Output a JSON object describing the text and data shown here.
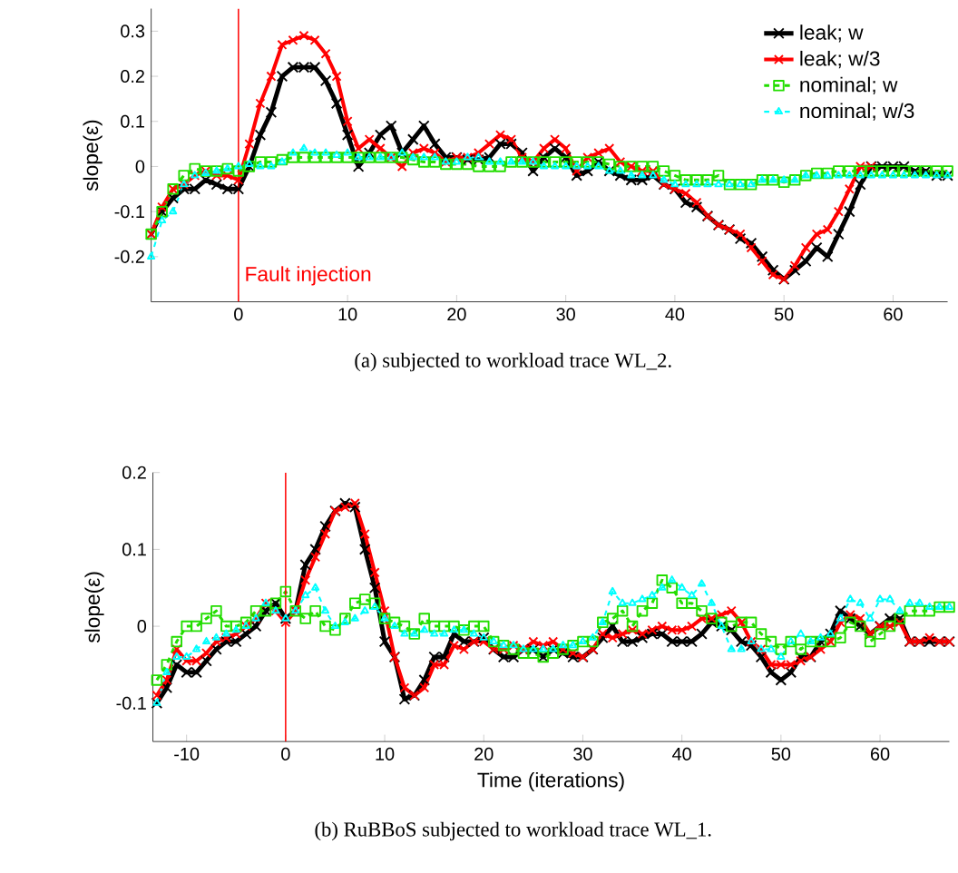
{
  "chart_data": [
    {
      "type": "line",
      "ylabel": "slope(ε)",
      "xlim": [
        -8,
        65
      ],
      "ylim": [
        -0.3,
        0.35
      ],
      "xticks": [
        0,
        10,
        20,
        30,
        40,
        50,
        60
      ],
      "yticks": [
        -0.2,
        -0.1,
        0,
        0.1,
        0.2,
        0.3
      ],
      "legend": "top right",
      "x": [
        -8,
        -7,
        -6,
        -5,
        -4,
        -3,
        -2,
        -1,
        0,
        1,
        2,
        3,
        4,
        5,
        6,
        7,
        8,
        9,
        10,
        11,
        12,
        13,
        14,
        15,
        16,
        17,
        18,
        19,
        20,
        21,
        22,
        23,
        24,
        25,
        26,
        27,
        28,
        29,
        30,
        31,
        32,
        33,
        34,
        35,
        36,
        37,
        38,
        39,
        40,
        41,
        42,
        43,
        44,
        45,
        46,
        47,
        48,
        49,
        50,
        51,
        52,
        53,
        54,
        55,
        56,
        57,
        58,
        59,
        60,
        61,
        62,
        63,
        64,
        65
      ],
      "series": [
        {
          "name": "leak; w",
          "color": "#000000",
          "marker": "cross",
          "line_style": "solid",
          "values": [
            -0.15,
            -0.1,
            -0.07,
            -0.05,
            -0.05,
            -0.03,
            -0.04,
            -0.05,
            -0.05,
            0.0,
            0.07,
            0.12,
            0.2,
            0.22,
            0.22,
            0.22,
            0.19,
            0.14,
            0.07,
            0.0,
            0.03,
            0.07,
            0.09,
            0.03,
            0.06,
            0.09,
            0.05,
            0.02,
            0.02,
            0.015,
            0.015,
            0.02,
            0.05,
            0.05,
            0.03,
            -0.01,
            0.02,
            0.04,
            0.02,
            -0.02,
            -0.01,
            0.01,
            -0.01,
            -0.02,
            -0.03,
            -0.03,
            -0.02,
            -0.04,
            -0.05,
            -0.08,
            -0.09,
            -0.11,
            -0.13,
            -0.14,
            -0.16,
            -0.17,
            -0.2,
            -0.23,
            -0.25,
            -0.23,
            -0.21,
            -0.18,
            -0.2,
            -0.15,
            -0.1,
            -0.04,
            0.0,
            0.0,
            0.0,
            0.0,
            -0.01,
            -0.01,
            -0.02,
            -0.02
          ]
        },
        {
          "name": "leak; w/3",
          "color": "#ff0000",
          "marker": "cross",
          "line_style": "solid",
          "values": [
            -0.15,
            -0.09,
            -0.05,
            -0.04,
            -0.02,
            -0.01,
            -0.02,
            -0.02,
            -0.03,
            0.05,
            0.14,
            0.2,
            0.27,
            0.28,
            0.29,
            0.28,
            0.25,
            0.2,
            0.1,
            0.04,
            0.06,
            0.04,
            0.02,
            0.0,
            0.03,
            0.04,
            0.03,
            0.01,
            0.02,
            0.02,
            0.03,
            0.05,
            0.07,
            0.06,
            0.02,
            0.01,
            0.04,
            0.06,
            0.04,
            -0.01,
            0.02,
            0.03,
            0.04,
            0.01,
            0.0,
            -0.01,
            -0.01,
            -0.04,
            -0.05,
            -0.06,
            -0.08,
            -0.11,
            -0.13,
            -0.14,
            -0.15,
            -0.18,
            -0.21,
            -0.24,
            -0.25,
            -0.22,
            -0.18,
            -0.15,
            -0.14,
            -0.1,
            -0.05,
            0.0,
            0.0,
            null,
            null,
            null,
            null,
            null,
            null,
            null
          ]
        },
        {
          "name": "nominal; w",
          "color": "#22dd00",
          "marker": "square",
          "line_style": "dashed",
          "values": [
            -0.15,
            -0.1,
            -0.05,
            -0.02,
            -0.005,
            -0.01,
            -0.01,
            -0.005,
            -0.01,
            0.0,
            0.01,
            0.01,
            0.015,
            0.02,
            0.02,
            0.02,
            0.02,
            0.02,
            0.02,
            0.02,
            0.02,
            0.02,
            0.02,
            0.02,
            0.015,
            0.01,
            0.01,
            0.005,
            0.005,
            0.005,
            0.0,
            0.0,
            0.0,
            0.01,
            0.01,
            0.01,
            0.01,
            0.01,
            0.01,
            0.01,
            0.01,
            0.01,
            0.005,
            0.0,
            0.0,
            0.0,
            0.0,
            -0.01,
            -0.02,
            -0.03,
            -0.03,
            -0.03,
            -0.02,
            -0.04,
            -0.04,
            -0.04,
            -0.03,
            -0.03,
            -0.035,
            -0.03,
            -0.02,
            -0.015,
            -0.015,
            -0.01,
            -0.01,
            -0.01,
            -0.01,
            -0.01,
            -0.01,
            -0.01,
            -0.01,
            -0.01,
            -0.01,
            -0.01
          ]
        },
        {
          "name": "nominal; w/3",
          "color": "#00ffff",
          "marker": "triangle",
          "line_style": "dashed",
          "values": [
            -0.2,
            -0.12,
            -0.1,
            -0.04,
            -0.02,
            -0.015,
            -0.01,
            -0.005,
            0.0,
            0.005,
            0.0,
            0.0,
            0.01,
            0.03,
            0.04,
            0.03,
            0.03,
            0.025,
            0.03,
            0.02,
            0.02,
            0.02,
            0.02,
            0.03,
            0.02,
            0.02,
            0.02,
            0.01,
            0.01,
            0.02,
            0.02,
            0.01,
            0.01,
            0.01,
            0.01,
            0.01,
            0.0,
            0.0,
            0.0,
            0.0,
            0.0,
            0.0,
            -0.01,
            -0.01,
            -0.02,
            -0.02,
            -0.02,
            -0.03,
            -0.04,
            -0.04,
            -0.04,
            -0.04,
            -0.04,
            -0.04,
            -0.04,
            -0.04,
            -0.03,
            -0.03,
            -0.03,
            -0.03,
            -0.02,
            -0.02,
            -0.02,
            -0.02,
            -0.02,
            -0.02,
            -0.02,
            -0.02,
            -0.02,
            -0.02,
            -0.02,
            -0.02,
            -0.02,
            -0.02
          ]
        }
      ],
      "ref_lines": [
        {
          "axis": "x",
          "value": 0,
          "label": "Fault injection",
          "color": "#ff0000"
        }
      ],
      "annotations": [
        "(a) subjected to workload trace WL_2."
      ]
    },
    {
      "type": "line",
      "xlabel": "Time (iterations)",
      "ylabel": "slope(ε)",
      "xlim": [
        -13.4,
        67
      ],
      "ylim": [
        -0.15,
        0.2
      ],
      "xticks": [
        -10,
        0,
        10,
        20,
        30,
        40,
        50,
        60
      ],
      "yticks": [
        -0.1,
        0,
        0.1,
        0.2
      ],
      "x": [
        -13,
        -12,
        -11,
        -10,
        -9,
        -8,
        -7,
        -6,
        -5,
        -4,
        -3,
        -2,
        -1,
        0,
        1,
        2,
        3,
        4,
        5,
        6,
        7,
        8,
        9,
        10,
        11,
        12,
        13,
        14,
        15,
        16,
        17,
        18,
        19,
        20,
        21,
        22,
        23,
        24,
        25,
        26,
        27,
        28,
        29,
        30,
        31,
        32,
        33,
        34,
        35,
        36,
        37,
        38,
        39,
        40,
        41,
        42,
        43,
        44,
        45,
        46,
        47,
        48,
        49,
        50,
        51,
        52,
        53,
        54,
        55,
        56,
        57,
        58,
        59,
        60,
        61,
        62,
        63,
        64,
        65,
        66,
        67
      ],
      "series": [
        {
          "color": "#000000",
          "marker": "cross",
          "line_style": "solid",
          "values": [
            -0.1,
            -0.08,
            -0.05,
            -0.06,
            -0.06,
            -0.045,
            -0.03,
            -0.02,
            -0.02,
            -0.01,
            0.0,
            0.02,
            0.03,
            0.01,
            0.02,
            0.08,
            0.1,
            0.13,
            0.15,
            0.16,
            0.155,
            0.1,
            0.05,
            -0.02,
            -0.04,
            -0.095,
            -0.09,
            -0.07,
            -0.04,
            -0.04,
            -0.01,
            -0.02,
            -0.02,
            -0.015,
            -0.03,
            -0.04,
            -0.04,
            -0.03,
            -0.03,
            -0.04,
            -0.03,
            -0.035,
            -0.04,
            -0.04,
            -0.03,
            -0.015,
            0.0,
            -0.02,
            -0.02,
            -0.015,
            -0.01,
            -0.01,
            -0.02,
            -0.02,
            -0.02,
            -0.01,
            0.005,
            0.0,
            -0.005,
            -0.02,
            -0.025,
            -0.04,
            -0.06,
            -0.07,
            -0.06,
            -0.04,
            -0.04,
            -0.02,
            -0.01,
            0.02,
            0.01,
            0.0,
            -0.01,
            0.0,
            0.01,
            0.01,
            -0.02,
            -0.02,
            -0.02,
            -0.02,
            -0.02
          ]
        },
        {
          "color": "#ff0000",
          "marker": "cross",
          "line_style": "solid",
          "values": [
            -0.09,
            -0.07,
            -0.03,
            -0.045,
            -0.045,
            -0.035,
            -0.02,
            -0.015,
            -0.01,
            0.0,
            0.01,
            0.03,
            0.02,
            0.005,
            0.02,
            0.06,
            0.09,
            0.12,
            0.15,
            0.155,
            0.16,
            0.12,
            0.07,
            0.02,
            -0.04,
            -0.08,
            -0.09,
            -0.08,
            -0.05,
            -0.05,
            -0.025,
            -0.03,
            -0.02,
            -0.02,
            -0.03,
            -0.03,
            -0.025,
            -0.03,
            -0.02,
            -0.025,
            -0.02,
            -0.03,
            -0.035,
            -0.04,
            -0.03,
            -0.01,
            -0.015,
            -0.01,
            -0.005,
            -0.01,
            -0.005,
            0.0,
            -0.005,
            -0.005,
            0.0,
            0.01,
            0.01,
            0.015,
            0.02,
            0.005,
            -0.02,
            -0.03,
            -0.05,
            -0.05,
            -0.05,
            -0.045,
            -0.04,
            -0.03,
            -0.02,
            0.005,
            0.015,
            0.01,
            -0.01,
            0.0,
            0.0,
            0.005,
            -0.02,
            -0.02,
            -0.015,
            -0.02,
            -0.02
          ]
        },
        {
          "color": "#22dd00",
          "marker": "square",
          "line_style": "dashed",
          "values": [
            -0.07,
            -0.05,
            -0.02,
            0.0,
            0.0,
            0.01,
            0.02,
            0.0,
            0.0,
            0.005,
            0.02,
            0.02,
            0.03,
            0.045,
            0.02,
            0.01,
            0.02,
            0.0,
            -0.005,
            0.01,
            0.03,
            0.035,
            0.03,
            0.01,
            0.005,
            0.0,
            -0.01,
            0.01,
            0.0,
            0.0,
            0.0,
            -0.005,
            0.0,
            0.0,
            -0.02,
            -0.025,
            -0.03,
            -0.035,
            -0.035,
            -0.04,
            -0.035,
            -0.03,
            -0.025,
            -0.02,
            -0.02,
            0.005,
            0.01,
            0.02,
            0.0,
            0.02,
            0.03,
            0.06,
            0.05,
            0.03,
            0.03,
            0.02,
            0.01,
            0.005,
            0.0,
            0.005,
            0.005,
            -0.01,
            -0.02,
            -0.03,
            -0.02,
            -0.03,
            -0.02,
            -0.02,
            -0.02,
            -0.015,
            0.005,
            0.0,
            -0.02,
            -0.01,
            0.0,
            0.01,
            0.02,
            0.02,
            0.02,
            0.025,
            0.025
          ]
        },
        {
          "color": "#00ffff",
          "marker": "triangle",
          "line_style": "dashed",
          "values": [
            -0.1,
            -0.06,
            -0.04,
            -0.04,
            -0.03,
            -0.02,
            -0.015,
            -0.01,
            -0.005,
            0.0,
            0.01,
            0.03,
            0.02,
            0.01,
            0.02,
            0.04,
            0.05,
            0.02,
            0.0,
            0.005,
            0.01,
            0.02,
            0.025,
            0.01,
            0.0,
            -0.01,
            -0.01,
            -0.005,
            -0.01,
            -0.01,
            -0.005,
            -0.005,
            -0.01,
            -0.015,
            -0.02,
            -0.025,
            -0.025,
            -0.03,
            -0.03,
            -0.03,
            -0.03,
            -0.025,
            -0.025,
            -0.02,
            -0.015,
            0.005,
            0.045,
            0.03,
            0.03,
            0.035,
            0.04,
            0.05,
            0.06,
            0.05,
            0.04,
            0.055,
            0.03,
            0.0,
            -0.03,
            -0.03,
            -0.02,
            -0.03,
            -0.03,
            -0.04,
            -0.02,
            -0.01,
            -0.02,
            -0.015,
            -0.01,
            0.01,
            0.035,
            0.03,
            0.01,
            0.035,
            0.035,
            0.02,
            0.03,
            0.03,
            0.025,
            0.025,
            0.025
          ]
        }
      ],
      "ref_lines": [
        {
          "axis": "x",
          "value": 0,
          "color": "#ff0000"
        }
      ],
      "annotations": [
        "(b) RuBBoS subjected to workload trace WL_1."
      ]
    }
  ]
}
